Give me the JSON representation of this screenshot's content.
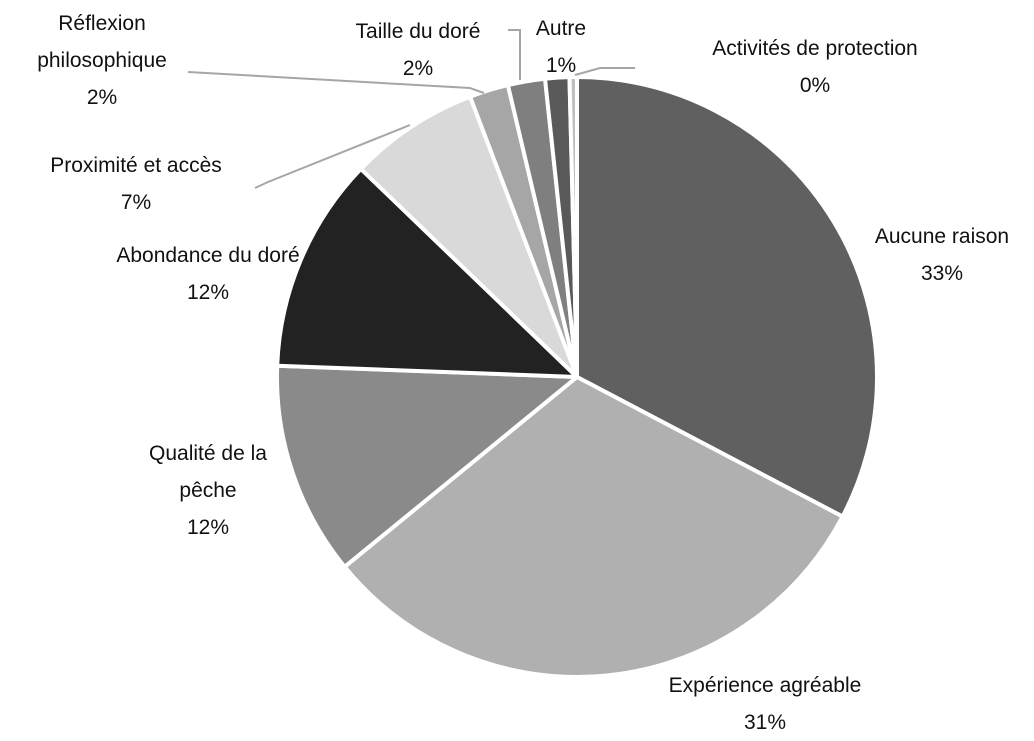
{
  "chart_data": {
    "type": "pie",
    "categories": [
      "Aucune raison",
      "Expérience agréable",
      "Qualité de la pêche",
      "Abondance du doré",
      "Proximité et accès",
      "Réflexion philosophique",
      "Taille du doré",
      "Autre",
      "Activités de protection"
    ],
    "values": [
      32.7,
      31.4,
      11.5,
      11.6,
      7,
      2.1,
      2,
      1.3,
      0.4
    ],
    "value_labels": [
      "33%",
      "31%",
      "12%",
      "12%",
      "7%",
      "2%",
      "2%",
      "1%",
      "0%"
    ],
    "colors": [
      "#606060",
      "#b0b0b0",
      "#8a8a8a",
      "#222222",
      "#d9d9d9",
      "#a6a6a6",
      "#7f7f7f",
      "#595959",
      "#bfbfbf"
    ]
  }
}
